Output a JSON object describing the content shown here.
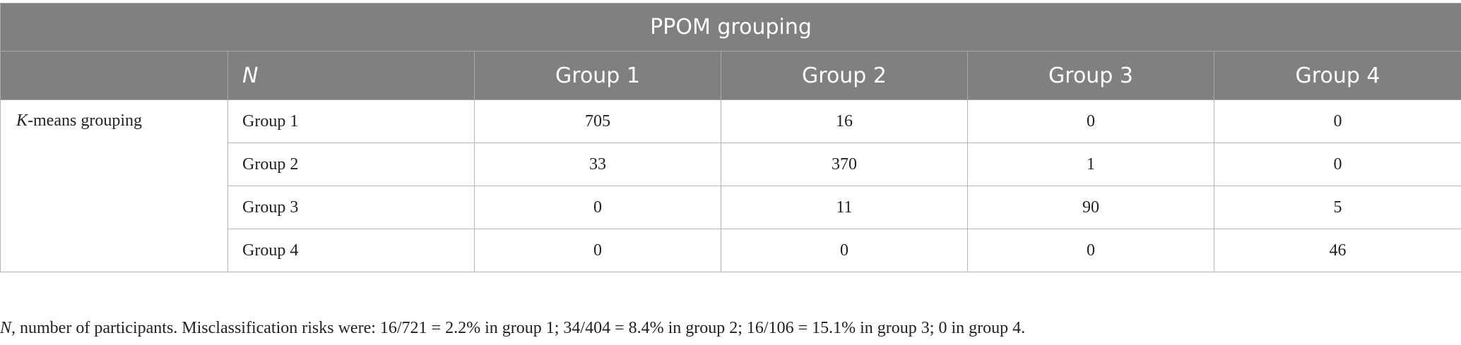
{
  "header": {
    "title": "PPOM grouping",
    "columns": [
      "N",
      "Group 1",
      "Group 2",
      "Group 3",
      "Group 4"
    ]
  },
  "table": {
    "group_label": {
      "italic": "K",
      "rest": "-means grouping"
    },
    "rows": [
      {
        "label": "Group 1",
        "values": [
          705,
          16,
          0,
          0
        ]
      },
      {
        "label": "Group 2",
        "values": [
          33,
          370,
          1,
          0
        ]
      },
      {
        "label": "Group 3",
        "values": [
          0,
          11,
          90,
          5
        ]
      },
      {
        "label": "Group 4",
        "values": [
          0,
          0,
          0,
          46
        ]
      }
    ]
  },
  "footnote": {
    "symbol": "N",
    "text": ", number of participants. Misclassification risks were: 16/721 = 2.2% in group 1; 34/404 = 8.4% in group 2; 16/106 = 15.1% in group 3; 0 in group 4."
  }
}
